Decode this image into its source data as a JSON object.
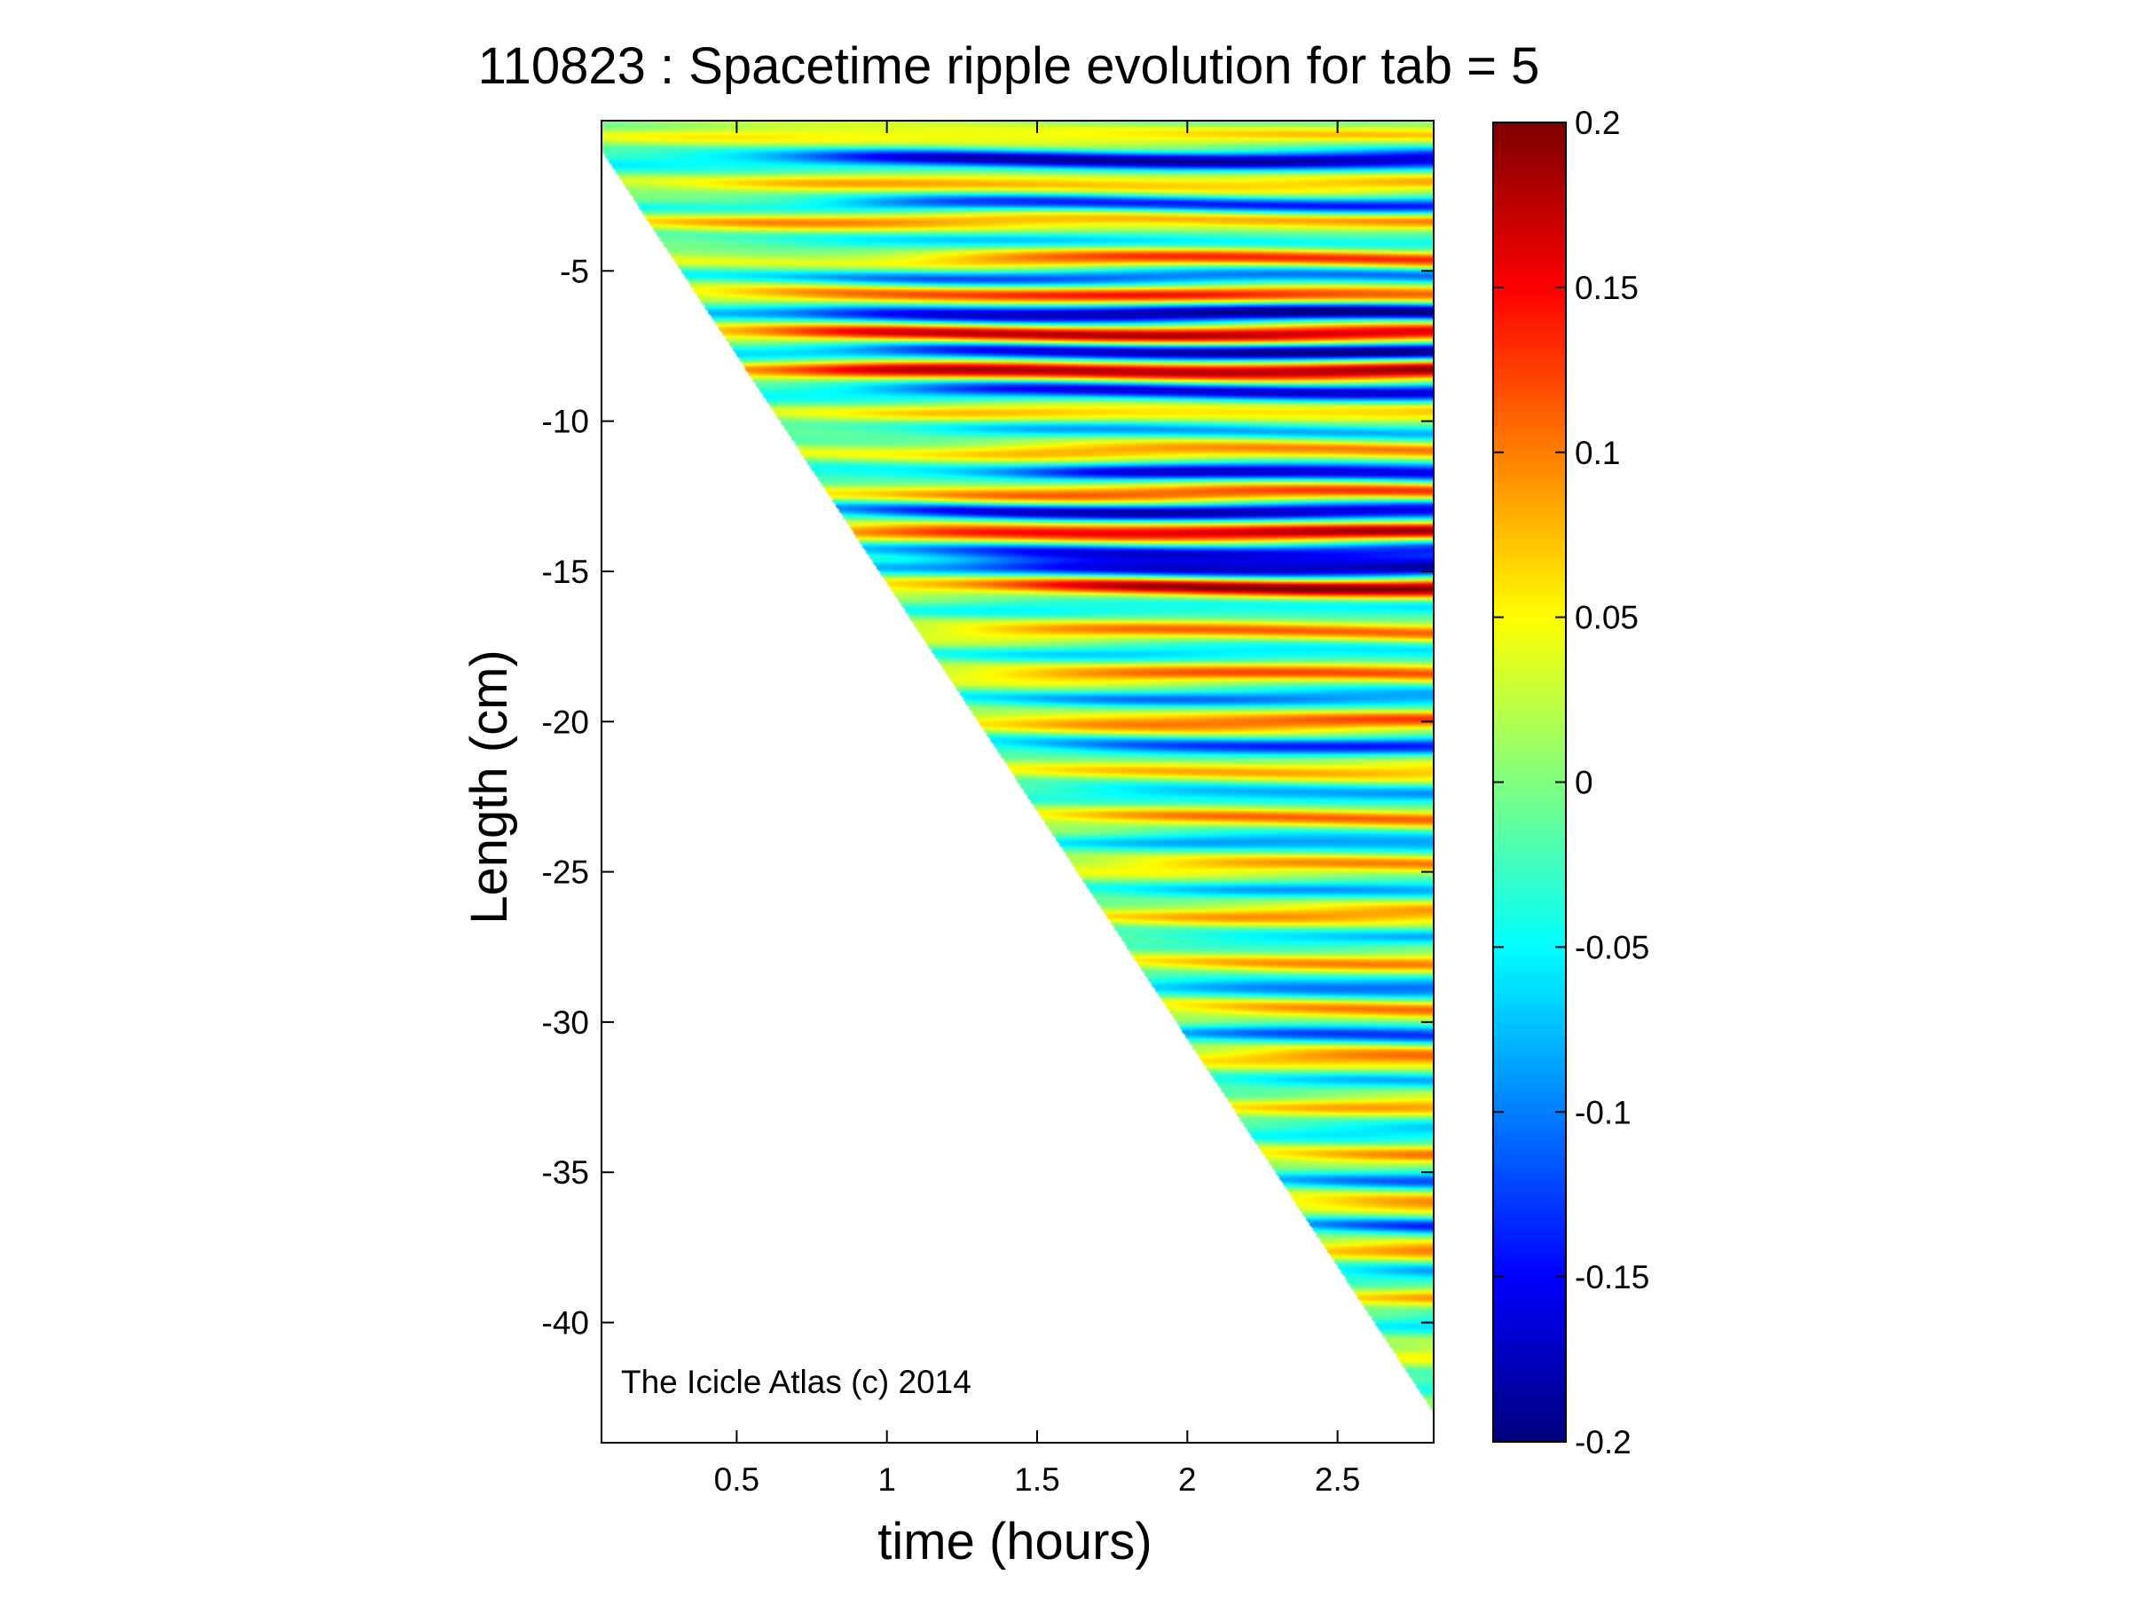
{
  "chart_data": {
    "type": "heatmap",
    "title": "110823 : Spacetime ripple evolution for tab = 5",
    "xlabel": "time (hours)",
    "ylabel": "Length (cm)",
    "annotation": "The Icicle Atlas (c) 2014",
    "xlim": [
      0.05,
      2.82
    ],
    "ylim": [
      -44,
      0
    ],
    "x_ticks": [
      0.5,
      1,
      1.5,
      2,
      2.5
    ],
    "x_tick_labels": [
      "0.5",
      "1",
      "1.5",
      "2",
      "2.5"
    ],
    "y_ticks": [
      -5,
      -10,
      -15,
      -20,
      -25,
      -30,
      -35,
      -40
    ],
    "y_tick_labels": [
      "-5",
      "-10",
      "-15",
      "-20",
      "-25",
      "-30",
      "-35",
      "-40"
    ],
    "colorbar": {
      "limits": [
        -0.2,
        0.2
      ],
      "ticks": [
        0.2,
        0.15,
        0.1,
        0.05,
        0,
        -0.05,
        -0.1,
        -0.15,
        -0.2
      ],
      "tick_labels": [
        "0.2",
        "0.15",
        "0.1",
        "0.05",
        "0",
        "-0.05",
        "-0.1",
        "-0.15",
        "-0.2"
      ],
      "colormap": "jet"
    },
    "data_region": {
      "description": "icicle tip advances downward with time",
      "tip_length_cm_at_start": -1.0,
      "tip_length_cm_at_end": -43.0,
      "time_start_hours": 0.05,
      "time_end_hours": 2.82
    },
    "bands": [
      {
        "y": -0.5,
        "amp": 0.06,
        "t_on": 0.2
      },
      {
        "y": -1.3,
        "amp": -0.18,
        "t_on": 0.8
      },
      {
        "y": -2.1,
        "amp": 0.08,
        "t_on": 0.5
      },
      {
        "y": -2.8,
        "amp": -0.14,
        "t_on": 0.9
      },
      {
        "y": -3.3,
        "amp": 0.1,
        "t_on": 0.3
      },
      {
        "y": -4.0,
        "amp": -0.06,
        "t_on": 0.6
      },
      {
        "y": -4.6,
        "amp": 0.13,
        "t_on": 1.2
      },
      {
        "y": -5.2,
        "amp": -0.12,
        "t_on": 0.8
      },
      {
        "y": -5.8,
        "amp": 0.14,
        "t_on": 0.6
      },
      {
        "y": -6.4,
        "amp": -0.2,
        "t_on": 0.8
      },
      {
        "y": -7.1,
        "amp": 0.18,
        "t_on": 0.7
      },
      {
        "y": -7.7,
        "amp": -0.2,
        "t_on": 1.0
      },
      {
        "y": -8.3,
        "amp": 0.2,
        "t_on": 0.8
      },
      {
        "y": -9.0,
        "amp": -0.16,
        "t_on": 1.1
      },
      {
        "y": -9.7,
        "amp": 0.08,
        "t_on": 1.0
      },
      {
        "y": -10.3,
        "amp": -0.08,
        "t_on": 1.2
      },
      {
        "y": -11.0,
        "amp": 0.1,
        "t_on": 1.3
      },
      {
        "y": -11.7,
        "amp": -0.17,
        "t_on": 1.5
      },
      {
        "y": -12.4,
        "amp": 0.13,
        "t_on": 1.1
      },
      {
        "y": -13.0,
        "amp": -0.18,
        "t_on": 1.0
      },
      {
        "y": -13.7,
        "amp": 0.18,
        "t_on": 1.0
      },
      {
        "y": -14.3,
        "amp": -0.15,
        "t_on": 1.2
      },
      {
        "y": -14.9,
        "amp": -0.19,
        "t_on": 1.4
      },
      {
        "y": -15.5,
        "amp": 0.2,
        "t_on": 1.5
      },
      {
        "y": -16.2,
        "amp": -0.06,
        "t_on": 1.2
      },
      {
        "y": -17.0,
        "amp": 0.1,
        "t_on": 1.3
      },
      {
        "y": -17.7,
        "amp": -0.07,
        "t_on": 1.4
      },
      {
        "y": -18.4,
        "amp": 0.11,
        "t_on": 1.4
      },
      {
        "y": -19.2,
        "amp": -0.1,
        "t_on": 1.5
      },
      {
        "y": -20.0,
        "amp": 0.12,
        "t_on": 1.5
      },
      {
        "y": -20.8,
        "amp": -0.13,
        "t_on": 1.6
      },
      {
        "y": -21.6,
        "amp": 0.08,
        "t_on": 1.6
      },
      {
        "y": -22.4,
        "amp": -0.09,
        "t_on": 1.7
      },
      {
        "y": -23.2,
        "amp": 0.1,
        "t_on": 1.7
      },
      {
        "y": -24.0,
        "amp": -0.1,
        "t_on": 1.8
      },
      {
        "y": -24.8,
        "amp": 0.09,
        "t_on": 1.8
      },
      {
        "y": -25.6,
        "amp": -0.08,
        "t_on": 1.9
      },
      {
        "y": -26.4,
        "amp": 0.1,
        "t_on": 1.9
      },
      {
        "y": -27.2,
        "amp": -0.07,
        "t_on": 2.0
      },
      {
        "y": -28.0,
        "amp": 0.09,
        "t_on": 2.0
      },
      {
        "y": -28.8,
        "amp": -0.12,
        "t_on": 2.0
      },
      {
        "y": -29.6,
        "amp": 0.1,
        "t_on": 2.1
      },
      {
        "y": -30.4,
        "amp": -0.13,
        "t_on": 2.1
      },
      {
        "y": -31.2,
        "amp": 0.12,
        "t_on": 2.2
      },
      {
        "y": -32.0,
        "amp": -0.07,
        "t_on": 2.2
      },
      {
        "y": -32.8,
        "amp": 0.09,
        "t_on": 2.3
      },
      {
        "y": -33.6,
        "amp": -0.08,
        "t_on": 2.3
      },
      {
        "y": -34.4,
        "amp": 0.1,
        "t_on": 2.4
      },
      {
        "y": -35.2,
        "amp": -0.12,
        "t_on": 2.4
      },
      {
        "y": -36.0,
        "amp": 0.12,
        "t_on": 2.5
      },
      {
        "y": -36.8,
        "amp": -0.14,
        "t_on": 2.5
      },
      {
        "y": -37.6,
        "amp": 0.13,
        "t_on": 2.6
      },
      {
        "y": -38.4,
        "amp": -0.1,
        "t_on": 2.6
      },
      {
        "y": -39.2,
        "amp": 0.1,
        "t_on": 2.7
      },
      {
        "y": -40.0,
        "amp": -0.08,
        "t_on": 2.7
      },
      {
        "y": -41.0,
        "amp": 0.07,
        "t_on": 2.75
      },
      {
        "y": -42.0,
        "amp": -0.06,
        "t_on": 2.78
      }
    ]
  }
}
